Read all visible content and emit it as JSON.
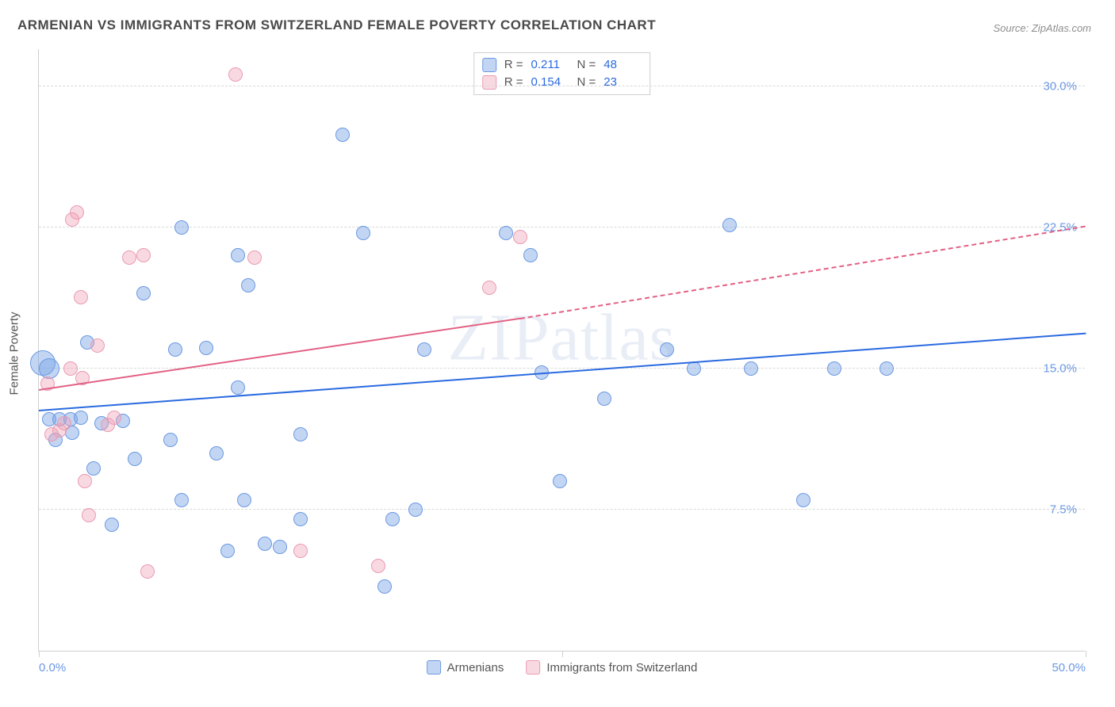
{
  "title": "ARMENIAN VS IMMIGRANTS FROM SWITZERLAND FEMALE POVERTY CORRELATION CHART",
  "source_label": "Source: ZipAtlas.com",
  "watermark": "ZIPatlas",
  "y_axis_label": "Female Poverty",
  "chart": {
    "type": "scatter",
    "background_color": "#ffffff",
    "grid_color": "#d9d9d9",
    "axis_color": "#cfcfcf",
    "xlim": [
      0,
      50
    ],
    "ylim": [
      0,
      32
    ],
    "x_ticks": [
      0,
      25,
      50
    ],
    "x_tick_labels": [
      "0.0%",
      "",
      "50.0%"
    ],
    "y_ticks": [
      7.5,
      15.0,
      22.5,
      30.0
    ],
    "y_tick_labels": [
      "7.5%",
      "15.0%",
      "22.5%",
      "30.0%"
    ],
    "tick_label_color": "#6b98e3",
    "tick_label_fontsize": 15,
    "bubble_default_radius": 9,
    "series": [
      {
        "name": "Armenians",
        "fill": "rgba(120,165,228,0.45)",
        "stroke": "#6b98e3",
        "trend_color": "#2a6ae0",
        "R": "0.211",
        "N": "48",
        "trend": {
          "x1": 0,
          "y1": 12.7,
          "x2": 50,
          "y2": 16.8
        },
        "points": [
          {
            "x": 0.2,
            "y": 15.3,
            "r": 16
          },
          {
            "x": 0.5,
            "y": 15.0,
            "r": 13
          },
          {
            "x": 0.5,
            "y": 12.3
          },
          {
            "x": 1.0,
            "y": 12.3
          },
          {
            "x": 1.5,
            "y": 12.3
          },
          {
            "x": 0.8,
            "y": 11.2
          },
          {
            "x": 1.6,
            "y": 11.6
          },
          {
            "x": 2.0,
            "y": 12.4
          },
          {
            "x": 3.0,
            "y": 12.1
          },
          {
            "x": 4.0,
            "y": 12.2
          },
          {
            "x": 2.3,
            "y": 16.4
          },
          {
            "x": 5.0,
            "y": 19.0
          },
          {
            "x": 6.5,
            "y": 16.0
          },
          {
            "x": 6.8,
            "y": 22.5
          },
          {
            "x": 8.0,
            "y": 16.1
          },
          {
            "x": 9.5,
            "y": 14.0
          },
          {
            "x": 9.5,
            "y": 21.0
          },
          {
            "x": 10.0,
            "y": 19.4
          },
          {
            "x": 2.6,
            "y": 9.7
          },
          {
            "x": 4.6,
            "y": 10.2
          },
          {
            "x": 3.5,
            "y": 6.7
          },
          {
            "x": 6.8,
            "y": 8.0
          },
          {
            "x": 6.3,
            "y": 11.2
          },
          {
            "x": 8.5,
            "y": 10.5
          },
          {
            "x": 9.0,
            "y": 5.3
          },
          {
            "x": 9.8,
            "y": 8.0
          },
          {
            "x": 10.8,
            "y": 5.7
          },
          {
            "x": 11.5,
            "y": 5.5
          },
          {
            "x": 12.5,
            "y": 7.0
          },
          {
            "x": 12.5,
            "y": 11.5
          },
          {
            "x": 14.5,
            "y": 27.4
          },
          {
            "x": 16.9,
            "y": 7.0
          },
          {
            "x": 15.5,
            "y": 22.2
          },
          {
            "x": 16.5,
            "y": 3.4
          },
          {
            "x": 18.4,
            "y": 16.0
          },
          {
            "x": 18.0,
            "y": 7.5
          },
          {
            "x": 22.3,
            "y": 22.2
          },
          {
            "x": 24.0,
            "y": 14.8
          },
          {
            "x": 23.5,
            "y": 21.0
          },
          {
            "x": 24.9,
            "y": 9.0
          },
          {
            "x": 27.0,
            "y": 13.4
          },
          {
            "x": 30.0,
            "y": 16.0
          },
          {
            "x": 31.3,
            "y": 15.0
          },
          {
            "x": 33.0,
            "y": 22.6
          },
          {
            "x": 34.0,
            "y": 15.0
          },
          {
            "x": 36.5,
            "y": 8.0
          },
          {
            "x": 38.0,
            "y": 15.0
          },
          {
            "x": 40.5,
            "y": 15.0
          }
        ]
      },
      {
        "name": "Immigrants from Switzerland",
        "fill": "rgba(240,160,180,0.40)",
        "stroke": "#e99ab2",
        "trend_color": "#e26184",
        "R": "0.154",
        "N": "23",
        "trend_solid": {
          "x1": 0,
          "y1": 13.8,
          "x2": 23,
          "y2": 17.6
        },
        "trend_dash": {
          "x1": 23,
          "y1": 17.6,
          "x2": 50,
          "y2": 22.5
        },
        "points": [
          {
            "x": 0.4,
            "y": 14.2
          },
          {
            "x": 0.6,
            "y": 11.5
          },
          {
            "x": 1.0,
            "y": 11.7
          },
          {
            "x": 1.2,
            "y": 12.1
          },
          {
            "x": 1.5,
            "y": 15.0
          },
          {
            "x": 1.6,
            "y": 22.9
          },
          {
            "x": 1.8,
            "y": 23.3
          },
          {
            "x": 2.0,
            "y": 18.8
          },
          {
            "x": 2.1,
            "y": 14.5
          },
          {
            "x": 2.2,
            "y": 9.0
          },
          {
            "x": 2.4,
            "y": 7.2
          },
          {
            "x": 2.8,
            "y": 16.2
          },
          {
            "x": 3.3,
            "y": 12.0
          },
          {
            "x": 3.6,
            "y": 12.4
          },
          {
            "x": 4.3,
            "y": 20.9
          },
          {
            "x": 5.0,
            "y": 21.0
          },
          {
            "x": 5.2,
            "y": 4.2
          },
          {
            "x": 9.4,
            "y": 30.6
          },
          {
            "x": 10.3,
            "y": 20.9
          },
          {
            "x": 12.5,
            "y": 5.3
          },
          {
            "x": 16.2,
            "y": 4.5
          },
          {
            "x": 21.5,
            "y": 19.3
          },
          {
            "x": 23.0,
            "y": 22.0
          }
        ]
      }
    ]
  },
  "corr_legend": {
    "rows": [
      {
        "swatch_fill": "rgba(120,165,228,0.45)",
        "swatch_stroke": "#6b98e3",
        "R_label": "R =",
        "R": "0.211",
        "N_label": "N =",
        "N": "48"
      },
      {
        "swatch_fill": "rgba(240,160,180,0.40)",
        "swatch_stroke": "#e99ab2",
        "R_label": "R =",
        "R": "0.154",
        "N_label": "N =",
        "N": "23"
      }
    ]
  },
  "bottom_legend": [
    {
      "swatch_fill": "rgba(120,165,228,0.45)",
      "swatch_stroke": "#6b98e3",
      "label": "Armenians"
    },
    {
      "swatch_fill": "rgba(240,160,180,0.40)",
      "swatch_stroke": "#e99ab2",
      "label": "Immigrants from Switzerland"
    }
  ]
}
